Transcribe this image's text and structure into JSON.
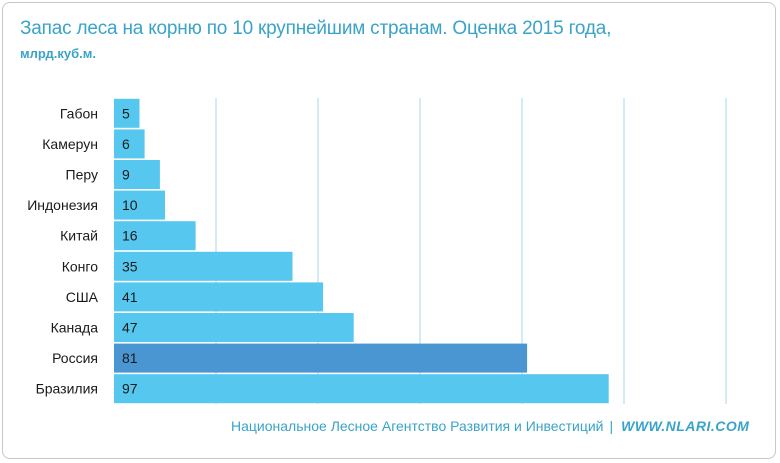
{
  "title": "Запас леса на корню по 10 крупнейшим странам. Оценка 2015 года,",
  "subtitle": "млрд.куб.м.",
  "footer": {
    "agency": "Национальное Лесное Агентство Развития и Инвестиций",
    "separator": "|",
    "site": "WWW.NLARI.COM"
  },
  "colors": {
    "bar": "#56c8f0",
    "highlight": "#4a96d2",
    "grid": "#a9d6e8",
    "text_accent": "#3aa3c8"
  },
  "chart_data": {
    "type": "bar",
    "orientation": "horizontal",
    "categories": [
      "Габон",
      "Камерун",
      "Перу",
      "Индонезия",
      "Китай",
      "Конго",
      "США",
      "Канада",
      "Россия",
      "Бразилия"
    ],
    "values": [
      5,
      6,
      9,
      10,
      16,
      35,
      41,
      47,
      81,
      97
    ],
    "highlight_category": "Россия",
    "xlim": [
      0,
      120
    ],
    "grid": true,
    "legend": "none"
  }
}
